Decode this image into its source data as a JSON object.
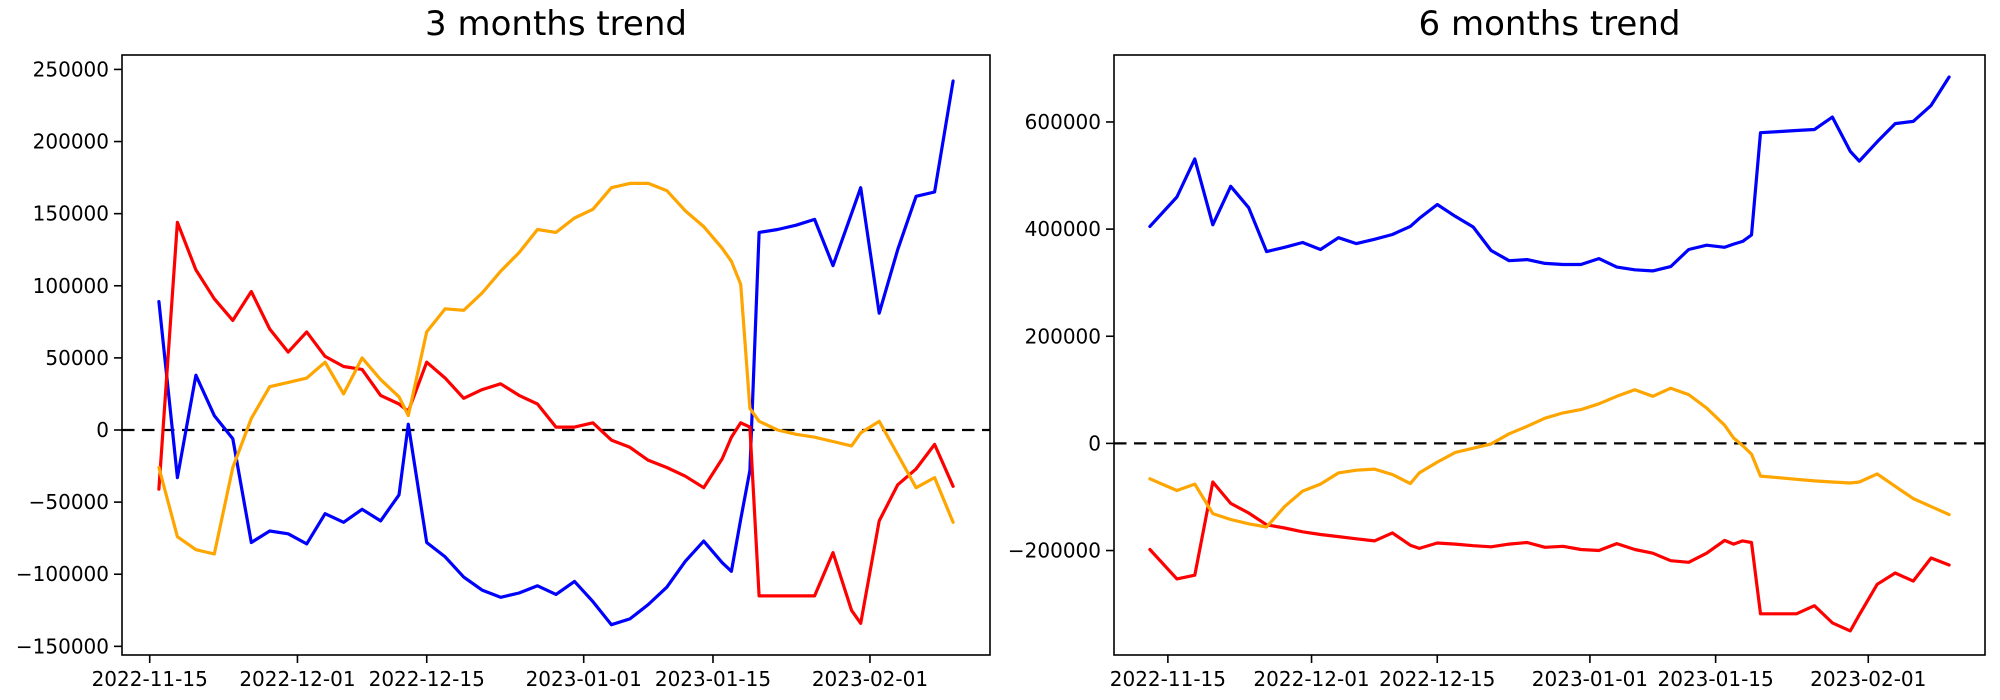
{
  "page": {
    "background": "#ffffff",
    "axis_color": "#000000"
  },
  "chart_data": [
    {
      "type": "line",
      "title": "3 months trend",
      "xlabel": "",
      "ylabel": "",
      "grid": false,
      "legend_position": "none",
      "zero_line": true,
      "zero_line_style": "dashed-black",
      "xlim": [
        "2022-11-12",
        "2023-02-14"
      ],
      "ylim": [
        -156000,
        260000
      ],
      "y_ticks": [
        250000,
        200000,
        150000,
        100000,
        50000,
        0,
        -50000,
        -100000,
        -150000
      ],
      "x_tick_labels": [
        "2022-11-15",
        "2022-12-01",
        "2022-12-15",
        "2023-01-01",
        "2023-01-15",
        "2023-02-01"
      ],
      "x": [
        "2022-11-16",
        "2022-11-18",
        "2022-11-20",
        "2022-11-22",
        "2022-11-24",
        "2022-11-26",
        "2022-11-28",
        "2022-11-30",
        "2022-12-02",
        "2022-12-04",
        "2022-12-06",
        "2022-12-08",
        "2022-12-10",
        "2022-12-12",
        "2022-12-13",
        "2022-12-15",
        "2022-12-17",
        "2022-12-19",
        "2022-12-21",
        "2022-12-23",
        "2022-12-25",
        "2022-12-27",
        "2022-12-29",
        "2022-12-31",
        "2023-01-02",
        "2023-01-04",
        "2023-01-06",
        "2023-01-08",
        "2023-01-10",
        "2023-01-12",
        "2023-01-14",
        "2023-01-16",
        "2023-01-17",
        "2023-01-18",
        "2023-01-19",
        "2023-01-20",
        "2023-01-22",
        "2023-01-24",
        "2023-01-26",
        "2023-01-28",
        "2023-01-30",
        "2023-01-31",
        "2023-02-02",
        "2023-02-04",
        "2023-02-06",
        "2023-02-08",
        "2023-02-10"
      ],
      "series": [
        {
          "name": "blue",
          "color": "#0000ff",
          "values": [
            89000,
            -33000,
            38000,
            10000,
            -6000,
            -78000,
            -70000,
            -72000,
            -79000,
            -58000,
            -64000,
            -55000,
            -63000,
            -45000,
            4000,
            -78000,
            -88000,
            -102000,
            -111000,
            -116000,
            -113000,
            -108000,
            -114000,
            -105000,
            -119000,
            -135000,
            -131000,
            -121000,
            -109000,
            -91000,
            -77000,
            -92000,
            -98000,
            -62000,
            -28000,
            137000,
            139000,
            142000,
            146000,
            114000,
            150000,
            168000,
            81000,
            125000,
            162000,
            165000,
            242000
          ]
        },
        {
          "name": "red",
          "color": "#ff0000",
          "values": [
            -41000,
            144000,
            111000,
            91000,
            76000,
            96000,
            70000,
            54000,
            68000,
            51000,
            44000,
            42000,
            24000,
            18000,
            13000,
            47000,
            36000,
            22000,
            28000,
            32000,
            24000,
            18000,
            2000,
            2000,
            5000,
            -7000,
            -12000,
            -21000,
            -26000,
            -32000,
            -40000,
            -20000,
            -5000,
            5000,
            2000,
            -115000,
            -115000,
            -115000,
            -115000,
            -85000,
            -125000,
            -134000,
            -63000,
            -38000,
            -27000,
            -10000,
            -39000
          ]
        },
        {
          "name": "orange",
          "color": "#ffa500",
          "values": [
            -26000,
            -74000,
            -83000,
            -86000,
            -26000,
            8000,
            30000,
            33000,
            36000,
            47000,
            25000,
            50000,
            35000,
            23000,
            10000,
            68000,
            84000,
            83000,
            95000,
            110000,
            123000,
            139000,
            137000,
            147000,
            153000,
            168000,
            171000,
            171000,
            166000,
            152000,
            141000,
            126000,
            117000,
            101000,
            15000,
            6000,
            0,
            -3000,
            -5000,
            -8000,
            -11000,
            -2000,
            6000,
            -17000,
            -40000,
            -33000,
            -64000
          ]
        }
      ]
    },
    {
      "type": "line",
      "title": "6 months trend",
      "xlabel": "",
      "ylabel": "",
      "grid": false,
      "legend_position": "none",
      "zero_line": true,
      "zero_line_style": "dashed-black",
      "xlim": [
        "2022-11-09",
        "2023-02-14"
      ],
      "ylim": [
        -395000,
        725000
      ],
      "y_ticks": [
        600000,
        400000,
        200000,
        0,
        -200000
      ],
      "x_tick_labels": [
        "2022-11-15",
        "2022-12-01",
        "2022-12-15",
        "2023-01-01",
        "2023-01-15",
        "2023-02-01"
      ],
      "x": [
        "2022-11-13",
        "2022-11-16",
        "2022-11-18",
        "2022-11-20",
        "2022-11-22",
        "2022-11-24",
        "2022-11-26",
        "2022-11-28",
        "2022-11-30",
        "2022-12-02",
        "2022-12-04",
        "2022-12-06",
        "2022-12-08",
        "2022-12-10",
        "2022-12-12",
        "2022-12-13",
        "2022-12-15",
        "2022-12-17",
        "2022-12-19",
        "2022-12-21",
        "2022-12-23",
        "2022-12-25",
        "2022-12-27",
        "2022-12-29",
        "2022-12-31",
        "2023-01-02",
        "2023-01-04",
        "2023-01-06",
        "2023-01-08",
        "2023-01-10",
        "2023-01-12",
        "2023-01-14",
        "2023-01-16",
        "2023-01-17",
        "2023-01-18",
        "2023-01-19",
        "2023-01-20",
        "2023-01-22",
        "2023-01-24",
        "2023-01-26",
        "2023-01-28",
        "2023-01-30",
        "2023-01-31",
        "2023-02-02",
        "2023-02-04",
        "2023-02-06",
        "2023-02-08",
        "2023-02-10"
      ],
      "series": [
        {
          "name": "blue",
          "color": "#0000ff",
          "values": [
            405000,
            460000,
            531000,
            408000,
            480000,
            440000,
            358000,
            366000,
            375000,
            362000,
            384000,
            373000,
            381000,
            390000,
            405000,
            420000,
            446000,
            424000,
            404000,
            360000,
            341000,
            343000,
            336000,
            334000,
            334000,
            345000,
            329000,
            324000,
            322000,
            330000,
            362000,
            370000,
            366000,
            372000,
            377000,
            389000,
            580000,
            582000,
            584000,
            586000,
            609000,
            545000,
            527000,
            563000,
            597000,
            601000,
            631000,
            684000
          ]
        },
        {
          "name": "red",
          "color": "#ff0000",
          "values": [
            -198000,
            -253000,
            -246000,
            -72000,
            -112000,
            -130000,
            -152000,
            -158000,
            -165000,
            -170000,
            -174000,
            -178000,
            -182000,
            -167000,
            -190000,
            -196000,
            -186000,
            -188000,
            -191000,
            -193000,
            -188000,
            -185000,
            -194000,
            -192000,
            -198000,
            -200000,
            -187000,
            -198000,
            -205000,
            -219000,
            -222000,
            -205000,
            -181000,
            -188000,
            -182000,
            -185000,
            -318000,
            -318000,
            -318000,
            -303000,
            -335000,
            -350000,
            -320000,
            -263000,
            -242000,
            -257000,
            -214000,
            -227000
          ]
        },
        {
          "name": "orange",
          "color": "#ffa500",
          "values": [
            -66000,
            -88000,
            -76000,
            -131000,
            -142000,
            -150000,
            -156000,
            -118000,
            -89000,
            -76000,
            -55000,
            -50000,
            -48000,
            -58000,
            -75000,
            -55000,
            -35000,
            -17000,
            -9000,
            -1000,
            18000,
            32000,
            47000,
            57000,
            63000,
            74000,
            88000,
            100000,
            88000,
            103000,
            91000,
            66000,
            34000,
            10000,
            -4000,
            -20000,
            -61000,
            -64000,
            -67000,
            -70000,
            -72000,
            -74000,
            -72000,
            -57000,
            -80000,
            -103000,
            -118000,
            -133000
          ]
        }
      ]
    }
  ]
}
